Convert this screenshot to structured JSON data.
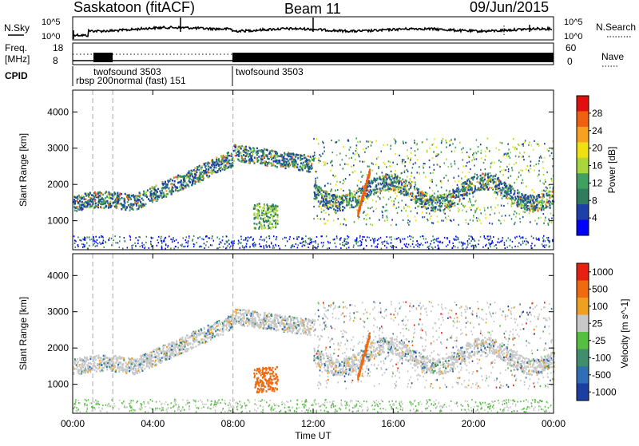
{
  "header": {
    "site": "Saskatoon (fitACF)",
    "beam": "Beam 11",
    "date": "09/Jun/2015"
  },
  "noise_panel": {
    "left_label": "N.Sky",
    "right_label": "N.Search",
    "ticks": [
      "10^5",
      "10^0"
    ]
  },
  "freq_panel": {
    "left_label_1": "Freq.",
    "left_label_2": "[MHz]",
    "right_label": "Nave",
    "left_ticks": [
      "18",
      "8"
    ],
    "right_ticks": [
      "60",
      "0"
    ]
  },
  "cpid": {
    "label": "CPID",
    "segments": [
      {
        "name": "rbsp 200",
        "start": "00:10"
      },
      {
        "name": "twofsound 3503",
        "start": "01:00"
      },
      {
        "name": "normal (fast) 151",
        "start": "01:50"
      },
      {
        "name": "twofsound 3503",
        "start": "08:00"
      }
    ]
  },
  "chart_data": [
    {
      "type": "heatmap",
      "title": "",
      "quantity": "Power",
      "ylabel": "Slant Range [km]",
      "colorbar_label": "Power [dB]",
      "ylim": [
        200,
        4600
      ],
      "yticks": [
        1000,
        2000,
        3000,
        4000
      ],
      "colorbar_ticks": [
        4,
        8,
        12,
        16,
        20,
        24,
        28
      ],
      "colors": [
        "#0000ff",
        "#1c3fa8",
        "#2e7d5e",
        "#3fa060",
        "#a8d63c",
        "#f0e010",
        "#f8a020",
        "#f06010",
        "#e01010"
      ]
    },
    {
      "type": "heatmap",
      "title": "",
      "quantity": "Velocity",
      "ylabel": "Slant Range [km]",
      "xlabel": "Time UT",
      "colorbar_label": "Velocity [m s^-1]",
      "ylim": [
        200,
        4600
      ],
      "yticks": [
        1000,
        2000,
        3000,
        4000
      ],
      "colorbar_ticks": [
        "1000",
        "500",
        "100",
        "25",
        "-25",
        "-100",
        "-500",
        "-1000"
      ],
      "colors": [
        "#1a3fa0",
        "#2f6fb8",
        "#3f8f6f",
        "#55c040",
        "#c8c8c8",
        "#f0a020",
        "#f06a10",
        "#e82010"
      ]
    }
  ],
  "x_axis": {
    "label": "Time UT",
    "ticks": [
      "00:00",
      "04:00",
      "08:00",
      "12:00",
      "16:00",
      "20:00",
      "00:00"
    ]
  }
}
